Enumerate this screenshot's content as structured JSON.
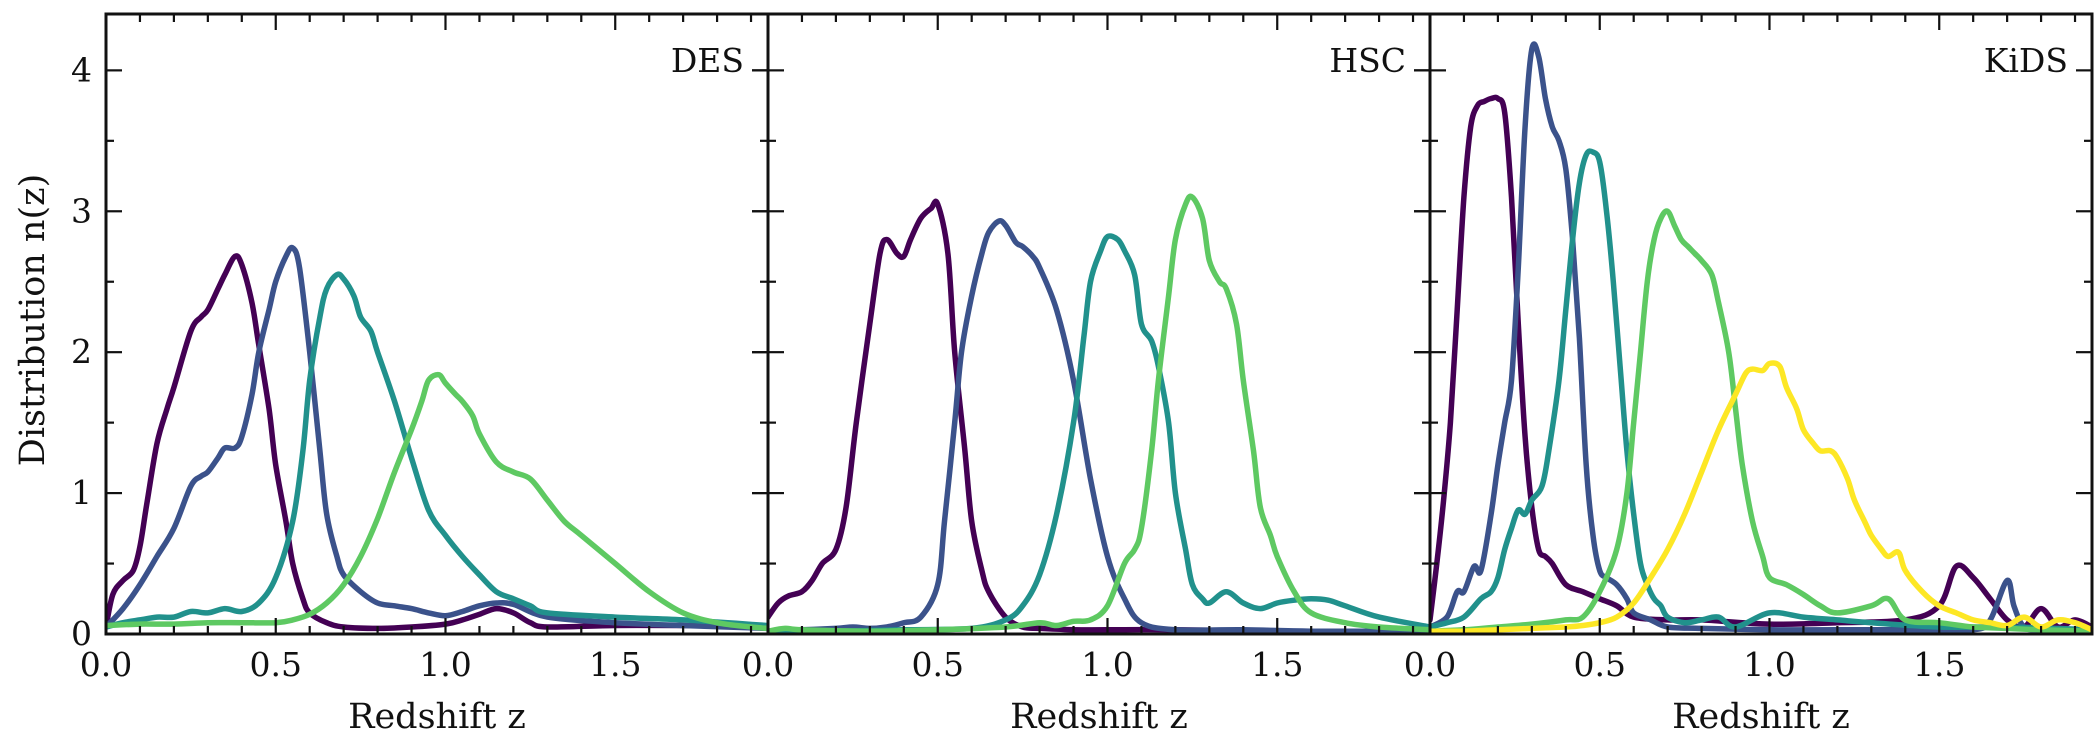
{
  "figure": {
    "ylabel": "Distribution n(z)",
    "xlabel": "Redshift z",
    "colors": [
      "#440154",
      "#3b528b",
      "#21918c",
      "#5ec962",
      "#fde725"
    ]
  },
  "chart_data": [
    {
      "type": "line",
      "panel_label": "DES",
      "xlabel": "Redshift z",
      "ylabel": "Distribution n(z)",
      "xlim": [
        0,
        1.95
      ],
      "ylim": [
        0,
        4.4
      ],
      "xticks": [
        "0.0",
        "0.5",
        "1.0",
        "1.5"
      ],
      "yticks": [
        "0",
        "1",
        "2",
        "3",
        "4"
      ],
      "series": [
        {
          "color": "#440154",
          "x": [
            0.0,
            0.02,
            0.05,
            0.08,
            0.1,
            0.12,
            0.15,
            0.18,
            0.2,
            0.25,
            0.28,
            0.3,
            0.33,
            0.35,
            0.38,
            0.4,
            0.43,
            0.45,
            0.48,
            0.5,
            0.53,
            0.55,
            0.58,
            0.6,
            0.65,
            0.7,
            0.8,
            0.9,
            1.0,
            1.05,
            1.1,
            1.15,
            1.2,
            1.25,
            1.3,
            1.5,
            1.7,
            1.95
          ],
          "y": [
            0.05,
            0.28,
            0.38,
            0.45,
            0.62,
            0.92,
            1.35,
            1.6,
            1.75,
            2.15,
            2.25,
            2.3,
            2.45,
            2.55,
            2.68,
            2.62,
            2.35,
            2.05,
            1.6,
            1.2,
            0.8,
            0.5,
            0.25,
            0.15,
            0.08,
            0.05,
            0.04,
            0.05,
            0.07,
            0.1,
            0.14,
            0.18,
            0.15,
            0.08,
            0.05,
            0.06,
            0.06,
            0.05
          ]
        },
        {
          "color": "#3b528b",
          "x": [
            0.0,
            0.05,
            0.1,
            0.15,
            0.2,
            0.25,
            0.28,
            0.3,
            0.33,
            0.35,
            0.38,
            0.4,
            0.43,
            0.45,
            0.48,
            0.5,
            0.53,
            0.55,
            0.57,
            0.6,
            0.63,
            0.65,
            0.68,
            0.7,
            0.75,
            0.8,
            0.85,
            0.9,
            0.95,
            1.0,
            1.05,
            1.1,
            1.15,
            1.2,
            1.3,
            1.5,
            1.7,
            1.95
          ],
          "y": [
            0.05,
            0.18,
            0.35,
            0.55,
            0.75,
            1.05,
            1.12,
            1.15,
            1.25,
            1.32,
            1.32,
            1.4,
            1.7,
            2.0,
            2.3,
            2.5,
            2.68,
            2.74,
            2.6,
            2.0,
            1.3,
            0.85,
            0.55,
            0.42,
            0.3,
            0.22,
            0.2,
            0.18,
            0.15,
            0.13,
            0.16,
            0.2,
            0.22,
            0.21,
            0.12,
            0.08,
            0.06,
            0.04
          ]
        },
        {
          "color": "#21918c",
          "x": [
            0.0,
            0.05,
            0.1,
            0.15,
            0.2,
            0.25,
            0.3,
            0.35,
            0.4,
            0.45,
            0.5,
            0.55,
            0.58,
            0.6,
            0.63,
            0.65,
            0.68,
            0.7,
            0.73,
            0.75,
            0.78,
            0.8,
            0.85,
            0.9,
            0.95,
            1.0,
            1.05,
            1.1,
            1.15,
            1.2,
            1.25,
            1.3,
            1.5,
            1.7,
            1.95
          ],
          "y": [
            0.05,
            0.08,
            0.1,
            0.12,
            0.12,
            0.16,
            0.15,
            0.18,
            0.16,
            0.22,
            0.4,
            0.8,
            1.3,
            1.8,
            2.25,
            2.45,
            2.55,
            2.52,
            2.4,
            2.25,
            2.15,
            2.0,
            1.65,
            1.25,
            0.88,
            0.7,
            0.55,
            0.42,
            0.3,
            0.25,
            0.2,
            0.15,
            0.12,
            0.1,
            0.06
          ]
        },
        {
          "color": "#5ec962",
          "x": [
            0.0,
            0.1,
            0.2,
            0.3,
            0.4,
            0.5,
            0.55,
            0.6,
            0.65,
            0.7,
            0.75,
            0.8,
            0.85,
            0.9,
            0.93,
            0.95,
            0.98,
            1.0,
            1.03,
            1.05,
            1.08,
            1.1,
            1.15,
            1.2,
            1.25,
            1.3,
            1.35,
            1.4,
            1.5,
            1.6,
            1.7,
            1.8,
            1.9,
            1.95
          ],
          "y": [
            0.06,
            0.07,
            0.07,
            0.08,
            0.08,
            0.08,
            0.1,
            0.14,
            0.22,
            0.35,
            0.55,
            0.82,
            1.15,
            1.45,
            1.65,
            1.8,
            1.84,
            1.78,
            1.7,
            1.65,
            1.55,
            1.42,
            1.22,
            1.15,
            1.1,
            0.95,
            0.8,
            0.7,
            0.5,
            0.3,
            0.15,
            0.08,
            0.05,
            0.04
          ]
        }
      ]
    },
    {
      "type": "line",
      "panel_label": "HSC",
      "xlabel": "Redshift z",
      "xlim": [
        0,
        1.95
      ],
      "ylim": [
        0,
        4.4
      ],
      "xticks": [
        "0.0",
        "0.5",
        "1.0",
        "1.5"
      ],
      "yticks": [
        "0",
        "1",
        "2",
        "3",
        "4"
      ],
      "series": [
        {
          "color": "#440154",
          "x": [
            0.0,
            0.03,
            0.06,
            0.1,
            0.13,
            0.16,
            0.2,
            0.23,
            0.26,
            0.3,
            0.33,
            0.35,
            0.38,
            0.4,
            0.42,
            0.45,
            0.48,
            0.5,
            0.53,
            0.55,
            0.58,
            0.6,
            0.63,
            0.65,
            0.7,
            0.75,
            0.8,
            0.9,
            1.0,
            1.2,
            1.5,
            1.95
          ],
          "y": [
            0.12,
            0.22,
            0.27,
            0.3,
            0.38,
            0.5,
            0.6,
            0.9,
            1.5,
            2.2,
            2.7,
            2.8,
            2.7,
            2.68,
            2.8,
            2.95,
            3.02,
            3.05,
            2.7,
            2.0,
            1.3,
            0.8,
            0.45,
            0.3,
            0.12,
            0.05,
            0.04,
            0.03,
            0.03,
            0.03,
            0.02,
            0.02
          ]
        },
        {
          "color": "#3b528b",
          "x": [
            0.0,
            0.1,
            0.2,
            0.25,
            0.3,
            0.35,
            0.4,
            0.45,
            0.5,
            0.52,
            0.55,
            0.57,
            0.6,
            0.63,
            0.65,
            0.68,
            0.7,
            0.73,
            0.75,
            0.78,
            0.8,
            0.85,
            0.9,
            0.95,
            1.0,
            1.05,
            1.1,
            1.2,
            1.4,
            1.6,
            1.95
          ],
          "y": [
            0.02,
            0.03,
            0.04,
            0.05,
            0.04,
            0.05,
            0.08,
            0.12,
            0.35,
            0.8,
            1.5,
            2.0,
            2.4,
            2.7,
            2.85,
            2.93,
            2.9,
            2.78,
            2.75,
            2.68,
            2.6,
            2.3,
            1.8,
            1.1,
            0.55,
            0.25,
            0.08,
            0.03,
            0.03,
            0.02,
            0.02
          ]
        },
        {
          "color": "#21918c",
          "x": [
            0.0,
            0.2,
            0.4,
            0.6,
            0.7,
            0.75,
            0.8,
            0.85,
            0.9,
            0.93,
            0.95,
            0.98,
            1.0,
            1.03,
            1.05,
            1.08,
            1.1,
            1.13,
            1.15,
            1.18,
            1.2,
            1.23,
            1.25,
            1.28,
            1.3,
            1.35,
            1.4,
            1.45,
            1.5,
            1.55,
            1.6,
            1.65,
            1.7,
            1.8,
            1.95
          ],
          "y": [
            0.02,
            0.02,
            0.03,
            0.04,
            0.1,
            0.2,
            0.42,
            0.85,
            1.5,
            2.1,
            2.5,
            2.72,
            2.82,
            2.8,
            2.72,
            2.55,
            2.2,
            2.08,
            1.9,
            1.5,
            1.0,
            0.6,
            0.35,
            0.25,
            0.22,
            0.3,
            0.22,
            0.18,
            0.22,
            0.24,
            0.25,
            0.24,
            0.2,
            0.12,
            0.05
          ]
        },
        {
          "color": "#5ec962",
          "x": [
            0.0,
            0.05,
            0.1,
            0.3,
            0.5,
            0.7,
            0.8,
            0.85,
            0.9,
            0.95,
            1.0,
            1.05,
            1.08,
            1.1,
            1.13,
            1.15,
            1.18,
            1.2,
            1.23,
            1.25,
            1.28,
            1.3,
            1.33,
            1.35,
            1.38,
            1.4,
            1.43,
            1.45,
            1.48,
            1.5,
            1.55,
            1.6,
            1.7,
            1.8,
            1.95
          ],
          "y": [
            0.02,
            0.04,
            0.03,
            0.02,
            0.03,
            0.05,
            0.08,
            0.06,
            0.09,
            0.1,
            0.2,
            0.5,
            0.6,
            0.75,
            1.3,
            1.8,
            2.4,
            2.8,
            3.05,
            3.1,
            2.95,
            2.65,
            2.5,
            2.45,
            2.2,
            1.8,
            1.3,
            0.9,
            0.7,
            0.55,
            0.3,
            0.15,
            0.08,
            0.05,
            0.03
          ]
        }
      ]
    },
    {
      "type": "line",
      "panel_label": "KiDS",
      "xlabel": "Redshift z",
      "xlim": [
        0,
        1.95
      ],
      "ylim": [
        0,
        4.4
      ],
      "xticks": [
        "0.0",
        "0.5",
        "1.0",
        "1.5"
      ],
      "yticks": [
        "0",
        "1",
        "2",
        "3",
        "4"
      ],
      "series": [
        {
          "color": "#440154",
          "x": [
            0.0,
            0.02,
            0.04,
            0.06,
            0.08,
            0.1,
            0.12,
            0.14,
            0.16,
            0.18,
            0.2,
            0.22,
            0.24,
            0.26,
            0.28,
            0.3,
            0.32,
            0.34,
            0.36,
            0.4,
            0.45,
            0.5,
            0.55,
            0.6,
            0.7,
            0.8,
            1.0,
            1.2,
            1.4,
            1.5,
            1.55,
            1.6,
            1.65,
            1.7,
            1.75,
            1.8,
            1.85,
            1.9,
            1.95
          ],
          "y": [
            0.1,
            0.5,
            0.95,
            1.5,
            2.3,
            3.1,
            3.6,
            3.75,
            3.78,
            3.8,
            3.8,
            3.7,
            3.1,
            2.2,
            1.4,
            0.9,
            0.6,
            0.55,
            0.5,
            0.35,
            0.3,
            0.25,
            0.2,
            0.12,
            0.1,
            0.1,
            0.07,
            0.08,
            0.1,
            0.2,
            0.48,
            0.4,
            0.25,
            0.1,
            0.05,
            0.18,
            0.05,
            0.1,
            0.05
          ]
        },
        {
          "color": "#3b528b",
          "x": [
            0.0,
            0.05,
            0.08,
            0.1,
            0.13,
            0.15,
            0.18,
            0.2,
            0.22,
            0.24,
            0.26,
            0.28,
            0.3,
            0.32,
            0.34,
            0.36,
            0.38,
            0.4,
            0.42,
            0.44,
            0.46,
            0.48,
            0.5,
            0.52,
            0.55,
            0.58,
            0.6,
            0.65,
            0.7,
            0.8,
            1.0,
            1.2,
            1.4,
            1.6,
            1.65,
            1.7,
            1.72,
            1.75,
            1.8,
            1.95
          ],
          "y": [
            0.05,
            0.12,
            0.3,
            0.3,
            0.48,
            0.45,
            0.85,
            1.2,
            1.5,
            1.8,
            2.6,
            3.6,
            4.15,
            4.1,
            3.8,
            3.6,
            3.5,
            3.3,
            2.8,
            2.1,
            1.2,
            0.7,
            0.45,
            0.4,
            0.35,
            0.25,
            0.15,
            0.1,
            0.05,
            0.04,
            0.03,
            0.03,
            0.03,
            0.03,
            0.1,
            0.38,
            0.2,
            0.05,
            0.03,
            0.02
          ]
        },
        {
          "color": "#21918c",
          "x": [
            0.0,
            0.05,
            0.1,
            0.15,
            0.18,
            0.2,
            0.22,
            0.24,
            0.26,
            0.28,
            0.3,
            0.33,
            0.35,
            0.38,
            0.4,
            0.42,
            0.44,
            0.46,
            0.48,
            0.5,
            0.52,
            0.54,
            0.56,
            0.58,
            0.6,
            0.62,
            0.64,
            0.66,
            0.68,
            0.7,
            0.75,
            0.8,
            0.85,
            0.9,
            1.0,
            1.1,
            1.2,
            1.3,
            1.5,
            1.7,
            1.95
          ],
          "y": [
            0.05,
            0.08,
            0.12,
            0.25,
            0.3,
            0.4,
            0.6,
            0.75,
            0.88,
            0.85,
            0.95,
            1.05,
            1.3,
            1.8,
            2.3,
            2.8,
            3.2,
            3.4,
            3.42,
            3.35,
            3.0,
            2.5,
            1.9,
            1.3,
            0.85,
            0.5,
            0.35,
            0.25,
            0.2,
            0.12,
            0.08,
            0.1,
            0.12,
            0.05,
            0.15,
            0.12,
            0.1,
            0.08,
            0.05,
            0.05,
            0.03
          ]
        },
        {
          "color": "#5ec962",
          "x": [
            0.0,
            0.1,
            0.2,
            0.3,
            0.4,
            0.45,
            0.5,
            0.55,
            0.58,
            0.6,
            0.62,
            0.64,
            0.66,
            0.68,
            0.7,
            0.72,
            0.74,
            0.76,
            0.78,
            0.8,
            0.83,
            0.85,
            0.88,
            0.9,
            0.92,
            0.95,
            0.98,
            1.0,
            1.05,
            1.1,
            1.15,
            1.2,
            1.3,
            1.35,
            1.4,
            1.5,
            1.6,
            1.7,
            1.8,
            1.95
          ],
          "y": [
            0.02,
            0.03,
            0.05,
            0.07,
            0.1,
            0.12,
            0.3,
            0.6,
            1.0,
            1.5,
            2.0,
            2.5,
            2.8,
            2.95,
            3.0,
            2.9,
            2.8,
            2.75,
            2.7,
            2.65,
            2.55,
            2.35,
            2.0,
            1.6,
            1.2,
            0.8,
            0.55,
            0.4,
            0.35,
            0.28,
            0.2,
            0.15,
            0.2,
            0.25,
            0.1,
            0.08,
            0.05,
            0.04,
            0.03,
            0.02
          ]
        },
        {
          "color": "#fde725",
          "x": [
            0.0,
            0.1,
            0.2,
            0.3,
            0.4,
            0.45,
            0.5,
            0.55,
            0.6,
            0.65,
            0.7,
            0.75,
            0.8,
            0.85,
            0.9,
            0.93,
            0.95,
            0.98,
            1.0,
            1.03,
            1.05,
            1.08,
            1.1,
            1.13,
            1.15,
            1.18,
            1.2,
            1.23,
            1.25,
            1.28,
            1.3,
            1.33,
            1.35,
            1.38,
            1.4,
            1.45,
            1.5,
            1.55,
            1.6,
            1.65,
            1.7,
            1.75,
            1.8,
            1.85,
            1.9,
            1.95
          ],
          "y": [
            0.02,
            0.02,
            0.03,
            0.04,
            0.05,
            0.06,
            0.08,
            0.12,
            0.22,
            0.4,
            0.6,
            0.85,
            1.15,
            1.45,
            1.7,
            1.85,
            1.88,
            1.87,
            1.92,
            1.9,
            1.75,
            1.6,
            1.45,
            1.35,
            1.3,
            1.3,
            1.25,
            1.1,
            0.95,
            0.8,
            0.7,
            0.6,
            0.55,
            0.58,
            0.45,
            0.3,
            0.2,
            0.15,
            0.1,
            0.08,
            0.06,
            0.12,
            0.05,
            0.1,
            0.08,
            0.03
          ]
        }
      ]
    }
  ]
}
